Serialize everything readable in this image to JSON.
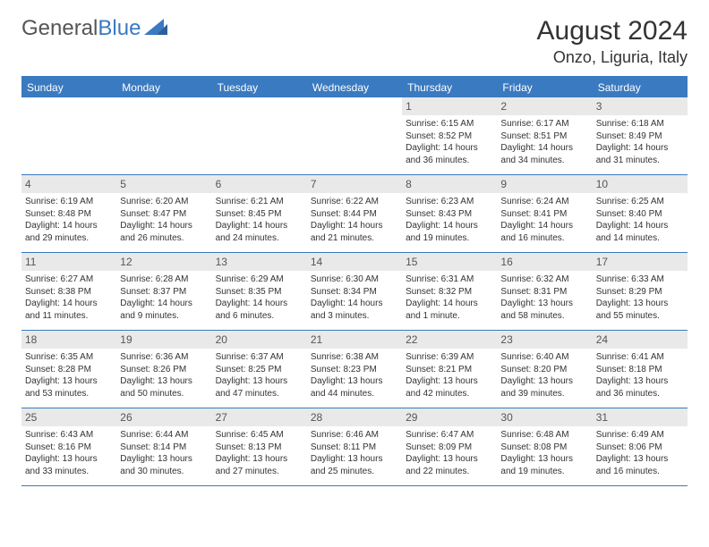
{
  "brand": {
    "name_part1": "General",
    "name_part2": "Blue",
    "color_gray": "#555555",
    "color_blue": "#3a7ac0"
  },
  "header": {
    "month_title": "August 2024",
    "location": "Onzo, Liguria, Italy"
  },
  "style": {
    "header_bg": "#3a7ac0",
    "header_text": "#ffffff",
    "daynum_bg": "#e9e9e9",
    "border_color": "#3a7ac0",
    "body_text": "#333333",
    "title_fontsize": 30,
    "location_fontsize": 18,
    "dayheader_fontsize": 12,
    "cell_fontsize": 10
  },
  "day_names": [
    "Sunday",
    "Monday",
    "Tuesday",
    "Wednesday",
    "Thursday",
    "Friday",
    "Saturday"
  ],
  "weeks": [
    [
      {
        "empty": true
      },
      {
        "empty": true
      },
      {
        "empty": true
      },
      {
        "empty": true
      },
      {
        "day": "1",
        "sunrise": "Sunrise: 6:15 AM",
        "sunset": "Sunset: 8:52 PM",
        "daylight1": "Daylight: 14 hours",
        "daylight2": "and 36 minutes."
      },
      {
        "day": "2",
        "sunrise": "Sunrise: 6:17 AM",
        "sunset": "Sunset: 8:51 PM",
        "daylight1": "Daylight: 14 hours",
        "daylight2": "and 34 minutes."
      },
      {
        "day": "3",
        "sunrise": "Sunrise: 6:18 AM",
        "sunset": "Sunset: 8:49 PM",
        "daylight1": "Daylight: 14 hours",
        "daylight2": "and 31 minutes."
      }
    ],
    [
      {
        "day": "4",
        "sunrise": "Sunrise: 6:19 AM",
        "sunset": "Sunset: 8:48 PM",
        "daylight1": "Daylight: 14 hours",
        "daylight2": "and 29 minutes."
      },
      {
        "day": "5",
        "sunrise": "Sunrise: 6:20 AM",
        "sunset": "Sunset: 8:47 PM",
        "daylight1": "Daylight: 14 hours",
        "daylight2": "and 26 minutes."
      },
      {
        "day": "6",
        "sunrise": "Sunrise: 6:21 AM",
        "sunset": "Sunset: 8:45 PM",
        "daylight1": "Daylight: 14 hours",
        "daylight2": "and 24 minutes."
      },
      {
        "day": "7",
        "sunrise": "Sunrise: 6:22 AM",
        "sunset": "Sunset: 8:44 PM",
        "daylight1": "Daylight: 14 hours",
        "daylight2": "and 21 minutes."
      },
      {
        "day": "8",
        "sunrise": "Sunrise: 6:23 AM",
        "sunset": "Sunset: 8:43 PM",
        "daylight1": "Daylight: 14 hours",
        "daylight2": "and 19 minutes."
      },
      {
        "day": "9",
        "sunrise": "Sunrise: 6:24 AM",
        "sunset": "Sunset: 8:41 PM",
        "daylight1": "Daylight: 14 hours",
        "daylight2": "and 16 minutes."
      },
      {
        "day": "10",
        "sunrise": "Sunrise: 6:25 AM",
        "sunset": "Sunset: 8:40 PM",
        "daylight1": "Daylight: 14 hours",
        "daylight2": "and 14 minutes."
      }
    ],
    [
      {
        "day": "11",
        "sunrise": "Sunrise: 6:27 AM",
        "sunset": "Sunset: 8:38 PM",
        "daylight1": "Daylight: 14 hours",
        "daylight2": "and 11 minutes."
      },
      {
        "day": "12",
        "sunrise": "Sunrise: 6:28 AM",
        "sunset": "Sunset: 8:37 PM",
        "daylight1": "Daylight: 14 hours",
        "daylight2": "and 9 minutes."
      },
      {
        "day": "13",
        "sunrise": "Sunrise: 6:29 AM",
        "sunset": "Sunset: 8:35 PM",
        "daylight1": "Daylight: 14 hours",
        "daylight2": "and 6 minutes."
      },
      {
        "day": "14",
        "sunrise": "Sunrise: 6:30 AM",
        "sunset": "Sunset: 8:34 PM",
        "daylight1": "Daylight: 14 hours",
        "daylight2": "and 3 minutes."
      },
      {
        "day": "15",
        "sunrise": "Sunrise: 6:31 AM",
        "sunset": "Sunset: 8:32 PM",
        "daylight1": "Daylight: 14 hours",
        "daylight2": "and 1 minute."
      },
      {
        "day": "16",
        "sunrise": "Sunrise: 6:32 AM",
        "sunset": "Sunset: 8:31 PM",
        "daylight1": "Daylight: 13 hours",
        "daylight2": "and 58 minutes."
      },
      {
        "day": "17",
        "sunrise": "Sunrise: 6:33 AM",
        "sunset": "Sunset: 8:29 PM",
        "daylight1": "Daylight: 13 hours",
        "daylight2": "and 55 minutes."
      }
    ],
    [
      {
        "day": "18",
        "sunrise": "Sunrise: 6:35 AM",
        "sunset": "Sunset: 8:28 PM",
        "daylight1": "Daylight: 13 hours",
        "daylight2": "and 53 minutes."
      },
      {
        "day": "19",
        "sunrise": "Sunrise: 6:36 AM",
        "sunset": "Sunset: 8:26 PM",
        "daylight1": "Daylight: 13 hours",
        "daylight2": "and 50 minutes."
      },
      {
        "day": "20",
        "sunrise": "Sunrise: 6:37 AM",
        "sunset": "Sunset: 8:25 PM",
        "daylight1": "Daylight: 13 hours",
        "daylight2": "and 47 minutes."
      },
      {
        "day": "21",
        "sunrise": "Sunrise: 6:38 AM",
        "sunset": "Sunset: 8:23 PM",
        "daylight1": "Daylight: 13 hours",
        "daylight2": "and 44 minutes."
      },
      {
        "day": "22",
        "sunrise": "Sunrise: 6:39 AM",
        "sunset": "Sunset: 8:21 PM",
        "daylight1": "Daylight: 13 hours",
        "daylight2": "and 42 minutes."
      },
      {
        "day": "23",
        "sunrise": "Sunrise: 6:40 AM",
        "sunset": "Sunset: 8:20 PM",
        "daylight1": "Daylight: 13 hours",
        "daylight2": "and 39 minutes."
      },
      {
        "day": "24",
        "sunrise": "Sunrise: 6:41 AM",
        "sunset": "Sunset: 8:18 PM",
        "daylight1": "Daylight: 13 hours",
        "daylight2": "and 36 minutes."
      }
    ],
    [
      {
        "day": "25",
        "sunrise": "Sunrise: 6:43 AM",
        "sunset": "Sunset: 8:16 PM",
        "daylight1": "Daylight: 13 hours",
        "daylight2": "and 33 minutes."
      },
      {
        "day": "26",
        "sunrise": "Sunrise: 6:44 AM",
        "sunset": "Sunset: 8:14 PM",
        "daylight1": "Daylight: 13 hours",
        "daylight2": "and 30 minutes."
      },
      {
        "day": "27",
        "sunrise": "Sunrise: 6:45 AM",
        "sunset": "Sunset: 8:13 PM",
        "daylight1": "Daylight: 13 hours",
        "daylight2": "and 27 minutes."
      },
      {
        "day": "28",
        "sunrise": "Sunrise: 6:46 AM",
        "sunset": "Sunset: 8:11 PM",
        "daylight1": "Daylight: 13 hours",
        "daylight2": "and 25 minutes."
      },
      {
        "day": "29",
        "sunrise": "Sunrise: 6:47 AM",
        "sunset": "Sunset: 8:09 PM",
        "daylight1": "Daylight: 13 hours",
        "daylight2": "and 22 minutes."
      },
      {
        "day": "30",
        "sunrise": "Sunrise: 6:48 AM",
        "sunset": "Sunset: 8:08 PM",
        "daylight1": "Daylight: 13 hours",
        "daylight2": "and 19 minutes."
      },
      {
        "day": "31",
        "sunrise": "Sunrise: 6:49 AM",
        "sunset": "Sunset: 8:06 PM",
        "daylight1": "Daylight: 13 hours",
        "daylight2": "and 16 minutes."
      }
    ]
  ]
}
